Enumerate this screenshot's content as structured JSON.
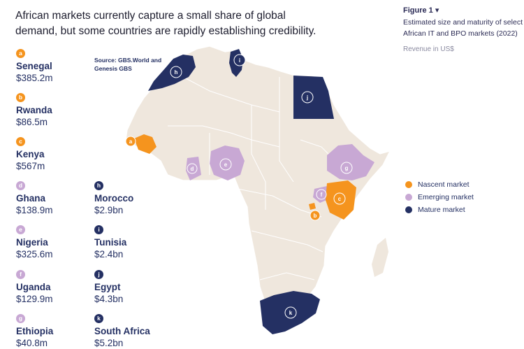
{
  "headline": "African markets currently capture a small share of global demand, but some countries are rapidly establishing credibility.",
  "figure": {
    "label": "Figure 1 ▾",
    "subtitle": "Estimated size and maturity of select African IT and BPO markets (2022)",
    "unit": "Revenue in US$"
  },
  "source": "Source: GBS.World and Genesis GBS",
  "colors": {
    "nascent": "#f5941e",
    "emerging": "#c8a8d4",
    "mature": "#243063",
    "land": "#efe7dd",
    "border": "#ffffff"
  },
  "legend": [
    {
      "label": "Nascent market",
      "category": "nascent"
    },
    {
      "label": "Emerging market",
      "category": "emerging"
    },
    {
      "label": "Mature market",
      "category": "mature"
    }
  ],
  "markets": [
    {
      "letter": "a",
      "name": "Senegal",
      "revenue": "$385.2m",
      "category": "nascent"
    },
    {
      "letter": "b",
      "name": "Rwanda",
      "revenue": "$86.5m",
      "category": "nascent"
    },
    {
      "letter": "c",
      "name": "Kenya",
      "revenue": "$567m",
      "category": "nascent"
    },
    {
      "letter": "d",
      "name": "Ghana",
      "revenue": "$138.9m",
      "category": "emerging"
    },
    {
      "letter": "e",
      "name": "Nigeria",
      "revenue": "$325.6m",
      "category": "emerging"
    },
    {
      "letter": "f",
      "name": "Uganda",
      "revenue": "$129.9m",
      "category": "emerging"
    },
    {
      "letter": "g",
      "name": "Ethiopia",
      "revenue": "$40.8m",
      "category": "emerging"
    },
    {
      "letter": "h",
      "name": "Morocco",
      "revenue": "$2.9bn",
      "category": "mature"
    },
    {
      "letter": "i",
      "name": "Tunisia",
      "revenue": "$2.4bn",
      "category": "mature"
    },
    {
      "letter": "j",
      "name": "Egypt",
      "revenue": "$4.3bn",
      "category": "mature"
    },
    {
      "letter": "k",
      "name": "South Africa",
      "revenue": "$5.2bn",
      "category": "mature"
    }
  ]
}
